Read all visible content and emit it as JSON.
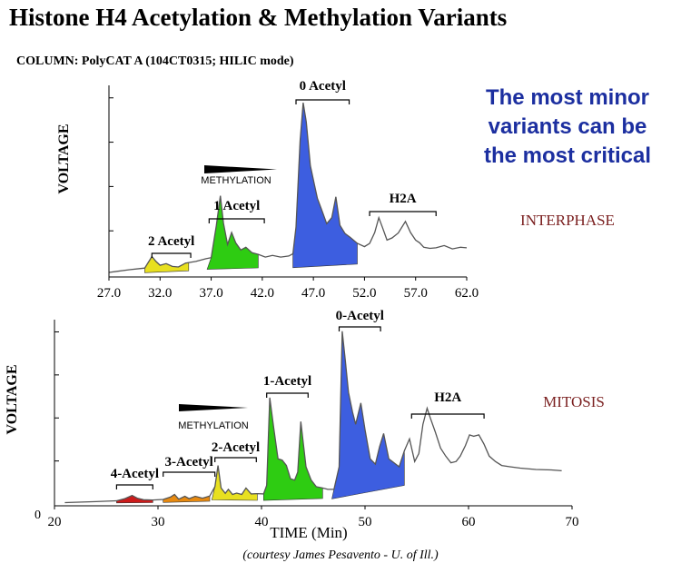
{
  "header": {
    "title": "Histone H4 Acetylation & Methylation Variants",
    "column": "COLUMN: PolyCAT A (104CT0315; HILIC mode)",
    "note": [
      "The most minor",
      "variants can be",
      "the most critical"
    ],
    "credit": "(courtesy James Pesavento - U. of Ill.)"
  },
  "colors": {
    "note": "#1c2fa0",
    "phase_label": "#7a1f1f",
    "acetyl0": "#3d5ee0",
    "acetyl1": "#2ecc12",
    "acetyl2": "#e8e020",
    "acetyl3": "#e88a10",
    "acetyl4": "#cc1a1a",
    "trace": "#555555"
  },
  "chart_data": [
    {
      "type": "line",
      "phase": "INTERPHASE",
      "ylabel": "VOLTAGE",
      "xlabel": "",
      "xlim": [
        27.0,
        62.0
      ],
      "x_ticks": [
        "27.0",
        "32.0",
        "37.0",
        "42.0",
        "47.0",
        "52.0",
        "57.0",
        "62.0"
      ],
      "methylation_label": "METHYLATION",
      "peak_labels": [
        {
          "label": "2 Acetyl",
          "x_range": [
            31.2,
            35.0
          ]
        },
        {
          "label": "1 Acetyl",
          "x_range": [
            36.8,
            42.2
          ]
        },
        {
          "label": "0 Acetyl",
          "x_range": [
            45.3,
            50.5
          ]
        },
        {
          "label": "H2A",
          "x_range": [
            52.5,
            59.0
          ]
        }
      ],
      "series": [
        {
          "x": [
            27.0,
            29.0,
            30.5,
            31.2,
            31.6,
            32.0,
            32.6,
            33.2,
            33.8,
            34.5,
            35.5,
            36.5,
            37.0,
            37.5,
            37.9,
            38.2,
            38.6,
            39.0,
            39.4,
            39.9,
            40.4,
            41.0,
            41.6,
            42.3,
            43.0,
            43.8,
            44.6,
            45.0,
            45.3,
            45.7,
            46.0,
            46.3,
            46.7,
            47.1,
            47.4,
            47.8,
            48.3,
            48.8,
            49.2,
            49.6,
            50.1,
            50.6,
            51.3,
            52.0,
            52.5,
            53.0,
            53.4,
            53.8,
            54.2,
            54.7,
            55.3,
            56.0,
            56.5,
            57.0,
            57.4,
            57.8,
            58.4,
            59.0,
            59.8,
            60.6,
            61.4,
            62.0
          ],
          "y": [
            0.5,
            1.0,
            1.3,
            3.4,
            2.5,
            1.8,
            2.1,
            1.6,
            1.5,
            2.2,
            2.5,
            3.0,
            3.2,
            9.0,
            14.5,
            9.5,
            5.6,
            7.8,
            5.9,
            4.6,
            5.1,
            4.1,
            3.8,
            3.3,
            3.6,
            3.3,
            3.5,
            3.9,
            8.8,
            24.5,
            31.5,
            28.0,
            20.0,
            16.5,
            14.0,
            12.0,
            9.4,
            10.5,
            14.3,
            9.1,
            7.6,
            6.9,
            5.8,
            5.2,
            5.8,
            7.8,
            10.5,
            8.5,
            6.4,
            6.8,
            7.7,
            9.8,
            7.8,
            6.4,
            5.9,
            5.1,
            4.9,
            5.0,
            5.4,
            4.8,
            5.1,
            5.0
          ]
        }
      ]
    },
    {
      "type": "line",
      "phase": "MITOSIS",
      "ylabel": "VOLTAGE",
      "xlabel": "TIME (Min)",
      "xlim": [
        20,
        70
      ],
      "x_ticks": [
        "20",
        "30",
        "40",
        "50",
        "60",
        "70"
      ],
      "y_tick": "0",
      "methylation_label": "METHYLATION",
      "peak_labels": [
        {
          "label": "4-Acetyl",
          "x_range": [
            26.0,
            29.5
          ]
        },
        {
          "label": "3-Acetyl",
          "x_range": [
            30.5,
            35.5
          ]
        },
        {
          "label": "2-Acetyl",
          "x_range": [
            35.5,
            39.5
          ]
        },
        {
          "label": "1-Acetyl",
          "x_range": [
            40.5,
            44.5
          ]
        },
        {
          "label": "0-Acetyl",
          "x_range": [
            47.5,
            51.5
          ]
        },
        {
          "label": "H2A",
          "x_range": [
            54.5,
            61.5
          ]
        }
      ],
      "series": [
        {
          "x": [
            21.0,
            24.0,
            26.0,
            26.8,
            27.5,
            28.0,
            28.6,
            29.5,
            30.5,
            31.2,
            31.6,
            32.0,
            32.6,
            33.0,
            33.6,
            34.3,
            35.0,
            35.5,
            35.8,
            36.1,
            36.5,
            36.8,
            37.2,
            37.6,
            38.1,
            38.5,
            39.0,
            39.6,
            40.2,
            40.5,
            40.8,
            41.2,
            41.6,
            42.0,
            42.4,
            42.8,
            43.2,
            43.5,
            43.8,
            44.3,
            44.8,
            45.3,
            45.9,
            46.4,
            47.0,
            47.5,
            47.8,
            48.1,
            48.4,
            48.8,
            49.1,
            49.6,
            50.0,
            50.5,
            51.0,
            51.4,
            51.8,
            52.3,
            52.8,
            53.3,
            53.8,
            54.3,
            54.8,
            55.2,
            55.6,
            56.0,
            56.3,
            56.8,
            57.3,
            57.8,
            58.3,
            58.8,
            59.2,
            59.7,
            60.1,
            60.5,
            61.0,
            61.5,
            62.0,
            62.6,
            63.2,
            64.0,
            65.0,
            66.5,
            68.0,
            69.0
          ],
          "y": [
            0.5,
            0.9,
            1.2,
            2.0,
            3.2,
            2.2,
            1.6,
            1.5,
            1.7,
            2.6,
            3.6,
            1.8,
            2.9,
            2.0,
            2.9,
            2.2,
            3.0,
            6.5,
            14.5,
            6.0,
            4.0,
            5.5,
            3.6,
            4.1,
            3.6,
            6.0,
            3.8,
            3.9,
            3.8,
            7.0,
            40.0,
            28.0,
            17.0,
            16.5,
            14.5,
            9.5,
            9.0,
            12.0,
            31.0,
            14.0,
            9.0,
            6.5,
            6.0,
            5.5,
            5.5,
            14.0,
            65.0,
            54.0,
            42.0,
            34.5,
            30.0,
            38.0,
            28.0,
            17.0,
            15.0,
            21.5,
            26.5,
            17.0,
            15.5,
            14.0,
            20.0,
            24.5,
            16.0,
            19.0,
            30.0,
            36.0,
            32.5,
            27.0,
            21.0,
            18.0,
            15.5,
            16.0,
            18.0,
            22.0,
            26.0,
            25.5,
            26.0,
            22.5,
            18.0,
            16.0,
            14.5,
            14.0,
            13.5,
            13.0,
            12.8,
            12.5
          ]
        }
      ]
    }
  ]
}
